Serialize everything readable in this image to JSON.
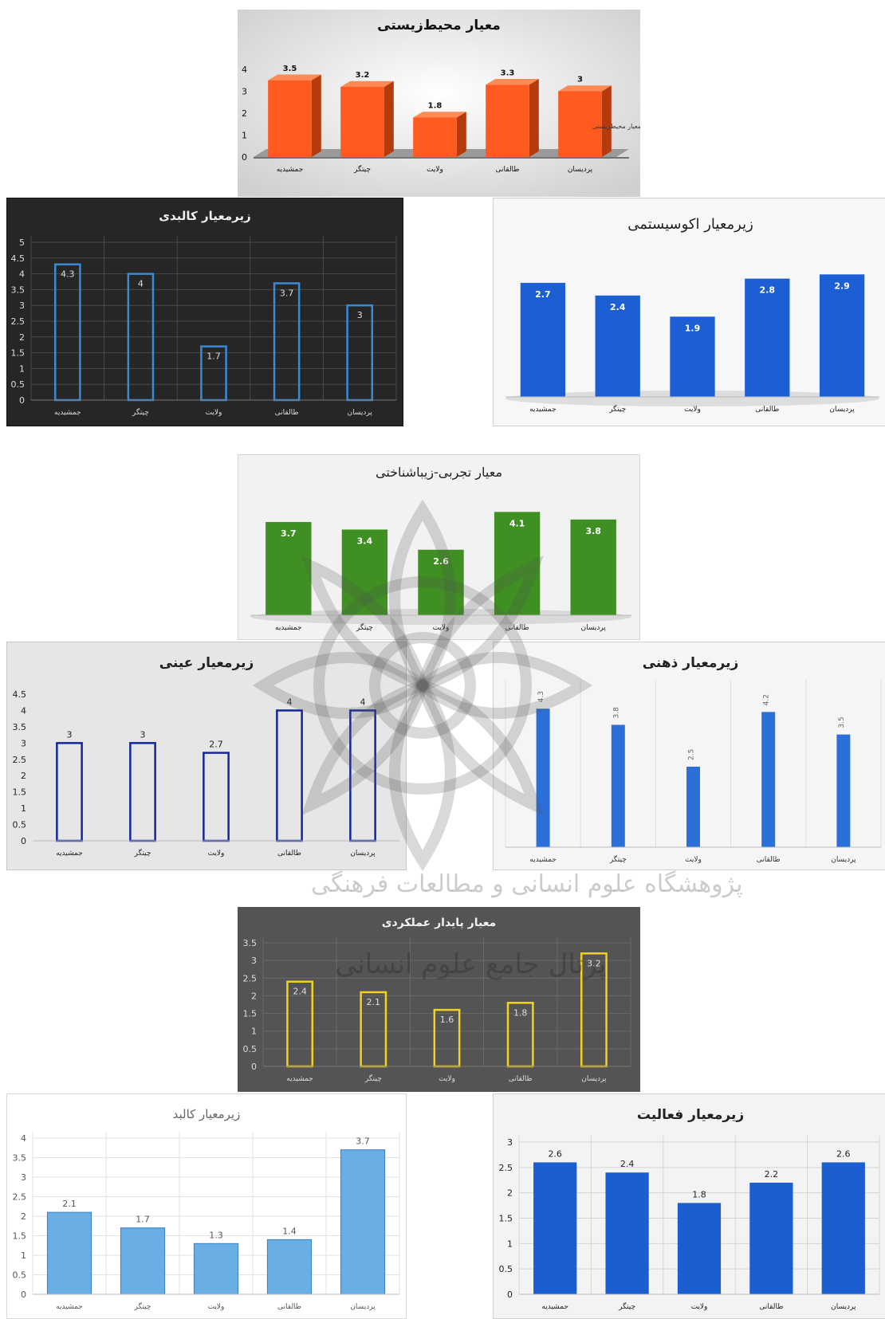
{
  "watermark_lines": [
    "پژوهشگاه علوم انسانی و مطالعات فرهنگی",
    "پرتال جامع علوم انسانی"
  ],
  "chart_data": [
    {
      "id": "env",
      "type": "bar",
      "title": "معیار محیط‌زیستی",
      "categories": [
        "جمشیدیه",
        "چیتگر",
        "ولایت",
        "طالقانی",
        "پردیسان"
      ],
      "series": [
        {
          "name": "معیار محیط‌زیستی",
          "values": [
            3.5,
            3.2,
            1.8,
            3.3,
            3
          ]
        }
      ],
      "yticks": [
        "0",
        "1",
        "2",
        "3",
        "4"
      ],
      "ylim": [
        0,
        4
      ],
      "legend": "right",
      "style": {
        "bg": "#e3e3e3",
        "bar": "#ff5a1f",
        "bar_dark": "#b53a0c",
        "bar_top": "#ff8a55",
        "text": "#111111",
        "grid": false,
        "mode": "3d"
      }
    },
    {
      "id": "kalbadi",
      "type": "bar",
      "title": "زیرمعیار کالبدی",
      "categories": [
        "جمشیدیه",
        "چیتگر",
        "ولایت",
        "طالقانی",
        "پردیسان"
      ],
      "series": [
        {
          "values": [
            4.3,
            4,
            1.7,
            3.7,
            3
          ]
        }
      ],
      "yticks": [
        "0",
        "0.5",
        "1",
        "1.5",
        "2",
        "2.5",
        "3",
        "3.5",
        "4",
        "4.5",
        "5"
      ],
      "ylim": [
        0,
        5
      ],
      "style": {
        "bg": "#262626",
        "bar": "#3a8ad6",
        "text": "#dddddd",
        "grid": true,
        "grid_color": "#4a4a4a",
        "mode": "outline"
      }
    },
    {
      "id": "eco",
      "type": "bar",
      "title": "زیرمعیار اکوسیستمی",
      "categories": [
        "جمشیدیه",
        "چیتگر",
        "ولایت",
        "طالقانی",
        "پردیسان"
      ],
      "series": [
        {
          "values": [
            2.7,
            2.4,
            1.9,
            2.8,
            2.9
          ]
        }
      ],
      "ylim": [
        0,
        3
      ],
      "style": {
        "bg": "#f7f7f7",
        "bar": "#1c5fd4",
        "text": "#222222",
        "grid": false,
        "mode": "solid-inside"
      }
    },
    {
      "id": "aesthetic",
      "type": "bar",
      "title": "معیار تجربی-زیباشناختی",
      "categories": [
        "جمشیدیه",
        "چیتگر",
        "ولایت",
        "طالقانی",
        "پردیسان"
      ],
      "series": [
        {
          "values": [
            3.7,
            3.4,
            2.6,
            4.1,
            3.8
          ]
        }
      ],
      "ylim": [
        0,
        4.3
      ],
      "style": {
        "bg": "#f2f2f2",
        "bar": "#3f8f22",
        "text": "#222222",
        "grid": false,
        "mode": "solid-inside"
      }
    },
    {
      "id": "eini",
      "type": "bar",
      "title": "زیرمعیار عینی",
      "categories": [
        "جمشیدیه",
        "چیتگر",
        "ولایت",
        "طالقانی",
        "پردیسان"
      ],
      "series": [
        {
          "values": [
            3,
            3,
            2.7,
            4,
            4
          ]
        }
      ],
      "yticks": [
        "0",
        "0.5",
        "1",
        "1.5",
        "2",
        "2.5",
        "3",
        "3.5",
        "4",
        "4.5"
      ],
      "ylim": [
        0,
        4.5
      ],
      "style": {
        "bg": "#e6e6e6",
        "bar": "#15289a",
        "text": "#222222",
        "grid": false,
        "mode": "outline-above"
      }
    },
    {
      "id": "zehni",
      "type": "bar",
      "title": "زیرمعیار ذهنی",
      "categories": [
        "جمشیدیه",
        "چیتگر",
        "ولایت",
        "طالقانی",
        "پردیسان"
      ],
      "series": [
        {
          "values": [
            4.3,
            3.8,
            2.5,
            4.2,
            3.5
          ]
        }
      ],
      "ylim": [
        0,
        5
      ],
      "style": {
        "bg": "#f5f5f5",
        "bar": "#2b6fd8",
        "text": "#333333",
        "grid": "vertical",
        "grid_color": "#dedede",
        "mode": "thin-rot"
      }
    },
    {
      "id": "sustain",
      "type": "bar",
      "title": "معیار پایدار عملکردی",
      "categories": [
        "جمشیدیه",
        "چیتگر",
        "ولایت",
        "طالقانی",
        "پردیسان"
      ],
      "series": [
        {
          "values": [
            2.4,
            2.1,
            1.6,
            1.8,
            3.2
          ]
        }
      ],
      "yticks": [
        "0",
        "0.5",
        "1",
        "1.5",
        "2",
        "2.5",
        "3",
        "3.5"
      ],
      "ylim": [
        0,
        3.5
      ],
      "style": {
        "bg": "#545454",
        "bar": "#f2d21b",
        "text": "#dddddd",
        "grid": true,
        "grid_color": "#6a6a6a",
        "mode": "outline"
      }
    },
    {
      "id": "kalbad",
      "type": "bar",
      "title": "زیرمعیار کالبد",
      "categories": [
        "جمشیدیه",
        "چیتگر",
        "ولایت",
        "طالقانی",
        "پردیسان"
      ],
      "series": [
        {
          "values": [
            2.1,
            1.7,
            1.3,
            1.4,
            3.7
          ]
        }
      ],
      "yticks": [
        "0",
        "0.5",
        "1",
        "1.5",
        "2",
        "2.5",
        "3",
        "3.5",
        "4"
      ],
      "ylim": [
        0,
        4
      ],
      "style": {
        "bg": "#ffffff",
        "bar": "#6aaee6",
        "text": "#555555",
        "grid": true,
        "grid_color": "#e2e2e2",
        "mode": "light-above"
      }
    },
    {
      "id": "activity",
      "type": "bar",
      "title": "زیرمعیار فعالیت",
      "categories": [
        "جمشیدیه",
        "چیتگر",
        "ولایت",
        "طالقانی",
        "پردیسان"
      ],
      "series": [
        {
          "values": [
            2.6,
            2.4,
            1.8,
            2.2,
            2.6
          ]
        }
      ],
      "yticks": [
        "0",
        "0.5",
        "1",
        "1.5",
        "2",
        "2.5",
        "3"
      ],
      "ylim": [
        0,
        3
      ],
      "style": {
        "bg": "#f3f3f3",
        "bar": "#1b5ed0",
        "text": "#222222",
        "grid": "both",
        "grid_color": "#d4d4d4",
        "mode": "solid-above"
      }
    }
  ]
}
